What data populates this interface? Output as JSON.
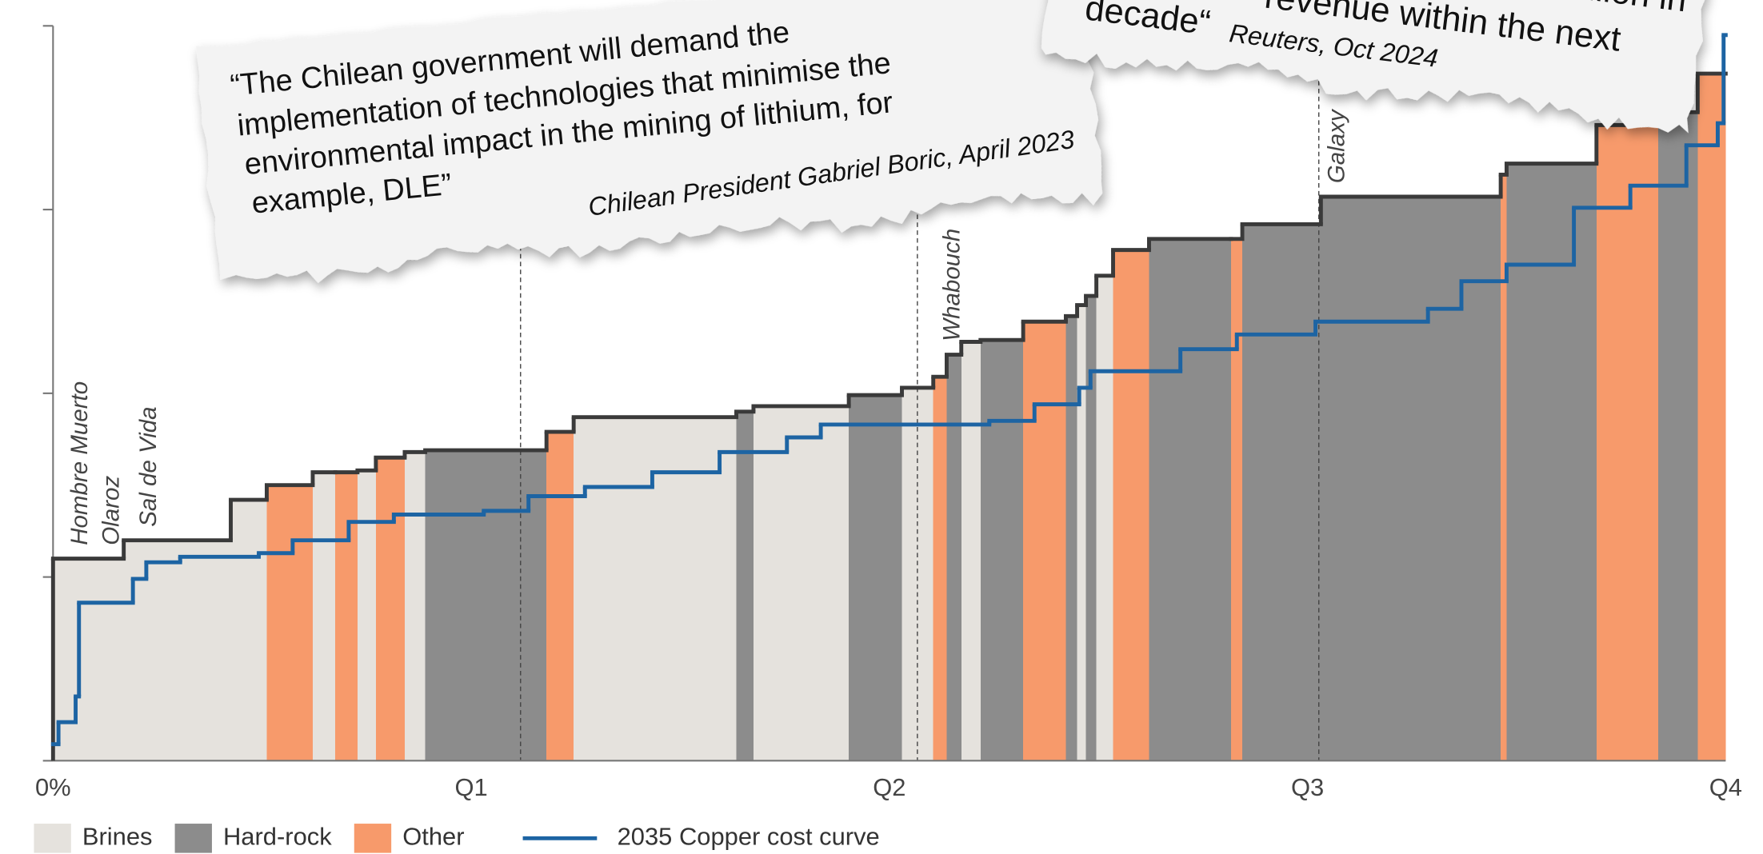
{
  "chart_data": {
    "type": "cost_curve",
    "xlim": [
      0,
      4
    ],
    "xticks": [
      {
        "value": 0,
        "label": "0%"
      },
      {
        "value": 1,
        "label": "Q1"
      },
      {
        "value": 2,
        "label": "Q2"
      },
      {
        "value": 3,
        "label": "Q3"
      },
      {
        "value": 4,
        "label": "Q4"
      }
    ],
    "ylim": [
      0,
      4
    ],
    "yticks": [
      0,
      1,
      2,
      3,
      4
    ],
    "series": [
      {
        "name": "Brines",
        "color": "#e5e2dd"
      },
      {
        "name": "Hard-rock",
        "color": "#8c8c8c"
      },
      {
        "name": "Other",
        "color": "#f79a6b"
      }
    ],
    "outline_color": "#3a3a3a",
    "bars": {
      "edges": [
        0,
        0.169,
        0.425,
        0.511,
        0.621,
        0.675,
        0.728,
        0.772,
        0.841,
        0.89,
        1.18,
        1.245,
        1.634,
        1.675,
        1.903,
        2.03,
        2.105,
        2.137,
        2.172,
        2.218,
        2.32,
        2.422,
        2.449,
        2.47,
        2.495,
        2.535,
        2.621,
        2.817,
        2.844,
        3.032,
        3.462,
        3.476,
        3.691,
        3.839,
        3.933,
        4.0
      ],
      "values": [
        1.1,
        1.2,
        1.42,
        1.5,
        1.57,
        1.57,
        1.58,
        1.65,
        1.68,
        1.69,
        1.79,
        1.87,
        1.9,
        1.93,
        1.99,
        2.03,
        2.09,
        2.21,
        2.28,
        2.29,
        2.39,
        2.42,
        2.48,
        2.53,
        2.64,
        2.78,
        2.84,
        2.84,
        2.92,
        3.07,
        3.19,
        3.25,
        3.46,
        3.53,
        3.74
      ],
      "groups": [
        "Brines",
        "Brines",
        "Brines",
        "Other",
        "Brines",
        "Other",
        "Brines",
        "Other",
        "Brines",
        "Hard-rock",
        "Other",
        "Brines",
        "Hard-rock",
        "Brines",
        "Hard-rock",
        "Brines",
        "Other",
        "Hard-rock",
        "Brines",
        "Hard-rock",
        "Other",
        "Hard-rock",
        "Brines",
        "Hard-rock",
        "Brines",
        "Other",
        "Hard-rock",
        "Other",
        "Hard-rock",
        "Hard-rock",
        "Other",
        "Hard-rock",
        "Other",
        "Hard-rock",
        "Other"
      ]
    },
    "line": {
      "name": "2035 Copper cost curve",
      "color": "#1d64a3",
      "x": [
        0,
        0.013,
        0.054,
        0.062,
        0.191,
        0.223,
        0.304,
        0.492,
        0.573,
        0.707,
        0.815,
        1.03,
        1.137,
        1.272,
        1.433,
        1.594,
        1.755,
        1.836,
        2.239,
        2.347,
        2.454,
        2.481,
        2.696,
        2.831,
        3.019,
        3.288,
        3.368,
        3.476,
        3.637,
        3.772,
        3.906,
        3.981,
        3.995
      ],
      "values": [
        0.09,
        0.21,
        0.35,
        0.86,
        0.99,
        1.08,
        1.11,
        1.13,
        1.2,
        1.3,
        1.34,
        1.36,
        1.44,
        1.49,
        1.57,
        1.68,
        1.76,
        1.83,
        1.85,
        1.94,
        2.03,
        2.12,
        2.24,
        2.32,
        2.39,
        2.46,
        2.61,
        2.7,
        3.01,
        3.13,
        3.35,
        3.47,
        3.95
      ]
    },
    "ref_lines": [
      1.118,
      2.067,
      3.027
    ],
    "annotations": [
      {
        "text": "Hombre Muerto",
        "x": 0.067
      },
      {
        "text": "Olaroz",
        "x": 0.142
      },
      {
        "text": "Sal de Vida",
        "x": 0.231
      },
      {
        "text": "Whabouch",
        "x": 2.153
      },
      {
        "text": "Galaxy",
        "x": 3.073
      }
    ],
    "quotes": [
      {
        "lines": [
          "“The Chilean government will demand the",
          "implementation of technologies that minimise the",
          "environmental impact in the mining of lithium, for",
          "example, DLE”"
        ],
        "source": "Chilean President Gabriel Boric, April 2023"
      },
      {
        "lines": [
          "billion in",
          "revenue within the next",
          "decade“"
        ],
        "source": "Reuters, Oct 2024"
      }
    ]
  }
}
